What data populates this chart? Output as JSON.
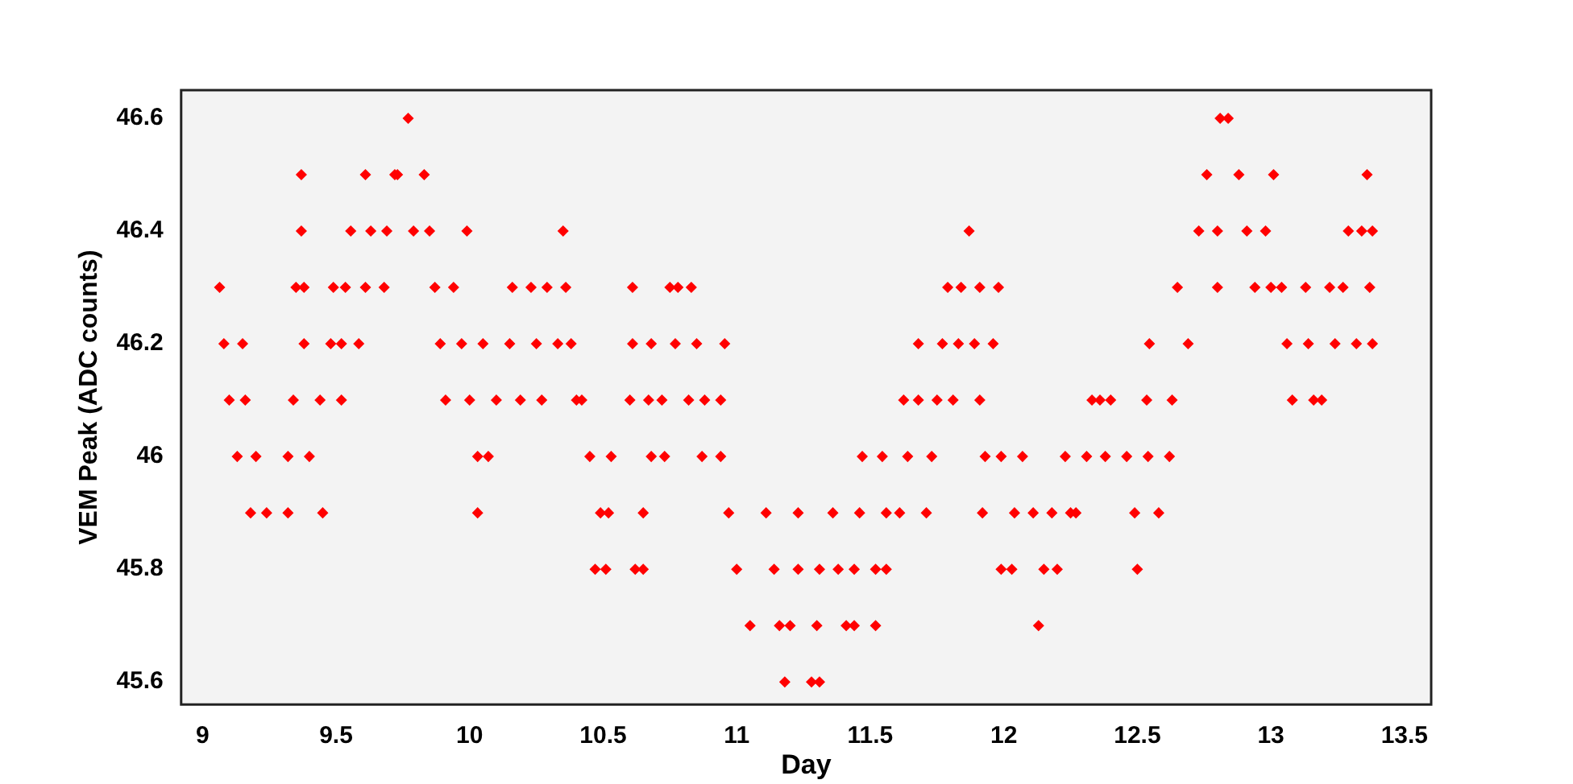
{
  "chart_data": {
    "type": "scatter",
    "xlabel": "Day",
    "ylabel": "VEM Peak (ADC counts)",
    "xlim": [
      8.92,
      13.6
    ],
    "xticks": [
      9,
      9.5,
      10,
      10.5,
      11,
      11.5,
      12,
      12.5,
      13,
      13.5
    ],
    "ylim": [
      45.56,
      46.65
    ],
    "yticks": [
      45.6,
      45.8,
      46,
      46.2,
      46.4,
      46.6
    ],
    "grid": false,
    "legend": false,
    "marker": "diamond",
    "series": [
      {
        "color": "#ff0000",
        "x": [
          9.064,
          9.08,
          9.15,
          9.1,
          9.16,
          9.13,
          9.2,
          9.32,
          9.18,
          9.24,
          9.32,
          9.34,
          9.35,
          9.38,
          9.37,
          9.37,
          9.38,
          9.4,
          9.44,
          9.45,
          9.48,
          9.52,
          9.49,
          9.52,
          9.535,
          9.61,
          9.555,
          9.585,
          9.61,
          9.63,
          9.69,
          9.68,
          9.72,
          9.73,
          9.77,
          9.79,
          9.85,
          9.83,
          9.87,
          9.89,
          9.91,
          9.94,
          9.97,
          9.99,
          10.0,
          10.03,
          10.03,
          10.05,
          10.07,
          10.1,
          10.15,
          10.16,
          10.19,
          10.23,
          10.25,
          10.27,
          10.29,
          10.33,
          10.35,
          10.36,
          10.38,
          10.4,
          10.42,
          10.45,
          10.49,
          10.47,
          10.51,
          10.53,
          10.52,
          10.6,
          10.61,
          10.61,
          10.62,
          10.65,
          10.65,
          10.67,
          10.72,
          10.68,
          10.68,
          10.73,
          10.75,
          10.78,
          10.77,
          10.85,
          10.82,
          10.83,
          10.87,
          10.94,
          10.88,
          10.94,
          10.955,
          10.97,
          11.0,
          11.14,
          11.05,
          11.11,
          11.16,
          11.18,
          11.2,
          11.23,
          11.23,
          11.28,
          11.31,
          11.3,
          11.31,
          11.36,
          11.38,
          11.41,
          11.44,
          11.44,
          11.46,
          11.47,
          11.52,
          11.52,
          11.545,
          11.56,
          11.56,
          11.61,
          11.625,
          11.64,
          11.68,
          11.68,
          11.71,
          11.73,
          11.75,
          11.77,
          11.79,
          11.83,
          11.81,
          11.84,
          11.87,
          11.89,
          11.91,
          11.91,
          11.92,
          11.93,
          11.96,
          11.98,
          11.99,
          11.99,
          12.03,
          12.04,
          12.07,
          12.11,
          12.13,
          12.15,
          12.18,
          12.2,
          12.23,
          12.25,
          12.27,
          12.31,
          12.33,
          12.36,
          12.4,
          12.38,
          12.46,
          12.49,
          12.5,
          12.535,
          12.545,
          12.54,
          12.58,
          12.62,
          12.63,
          12.65,
          12.69,
          12.73,
          12.76,
          12.8,
          12.81,
          12.8,
          12.84,
          12.88,
          12.91,
          12.94,
          12.98,
          13.01,
          13.0,
          13.04,
          13.06,
          13.08,
          13.13,
          13.14,
          13.16,
          13.19,
          13.22,
          13.24,
          13.27,
          13.29,
          13.32,
          13.34,
          13.36,
          13.37,
          13.38,
          13.38
        ],
        "values": [
          46.3,
          46.2,
          46.2,
          46.1,
          46.1,
          46.0,
          46.0,
          46.0,
          45.9,
          45.9,
          45.9,
          46.1,
          46.3,
          46.3,
          46.5,
          46.4,
          46.2,
          46.0,
          46.1,
          45.9,
          46.2,
          46.2,
          46.3,
          46.1,
          46.3,
          46.3,
          46.4,
          46.2,
          46.5,
          46.4,
          46.4,
          46.3,
          46.5,
          46.5,
          46.6,
          46.4,
          46.4,
          46.5,
          46.3,
          46.2,
          46.1,
          46.3,
          46.2,
          46.4,
          46.1,
          46.0,
          45.9,
          46.2,
          46.0,
          46.1,
          46.2,
          46.3,
          46.1,
          46.3,
          46.2,
          46.1,
          46.3,
          46.2,
          46.4,
          46.3,
          46.2,
          46.1,
          46.1,
          46.0,
          45.9,
          45.8,
          45.8,
          46.0,
          45.9,
          46.1,
          46.3,
          46.2,
          45.8,
          45.9,
          45.8,
          46.1,
          46.1,
          46.2,
          46.0,
          46.0,
          46.3,
          46.3,
          46.2,
          46.2,
          46.1,
          46.3,
          46.0,
          46.0,
          46.1,
          46.1,
          46.2,
          45.9,
          45.8,
          45.8,
          45.7,
          45.9,
          45.7,
          45.6,
          45.7,
          45.8,
          45.9,
          45.6,
          45.6,
          45.7,
          45.8,
          45.9,
          45.8,
          45.7,
          45.8,
          45.7,
          45.9,
          46.0,
          45.7,
          45.8,
          46.0,
          45.8,
          45.9,
          45.9,
          46.1,
          46.0,
          46.2,
          46.1,
          45.9,
          46.0,
          46.1,
          46.2,
          46.3,
          46.2,
          46.1,
          46.3,
          46.4,
          46.2,
          46.1,
          46.3,
          45.9,
          46.0,
          46.2,
          46.3,
          45.8,
          46.0,
          45.8,
          45.9,
          46.0,
          45.9,
          45.7,
          45.8,
          45.9,
          45.8,
          46.0,
          45.9,
          45.9,
          46.0,
          46.1,
          46.1,
          46.1,
          46.0,
          46.0,
          45.9,
          45.8,
          46.1,
          46.2,
          46.0,
          45.9,
          46.0,
          46.1,
          46.3,
          46.2,
          46.4,
          46.5,
          46.3,
          46.6,
          46.4,
          46.6,
          46.5,
          46.4,
          46.3,
          46.4,
          46.5,
          46.3,
          46.3,
          46.2,
          46.1,
          46.3,
          46.2,
          46.1,
          46.1,
          46.3,
          46.2,
          46.3,
          46.4,
          46.2,
          46.4,
          46.5,
          46.3,
          46.2,
          46.4
        ]
      }
    ]
  }
}
